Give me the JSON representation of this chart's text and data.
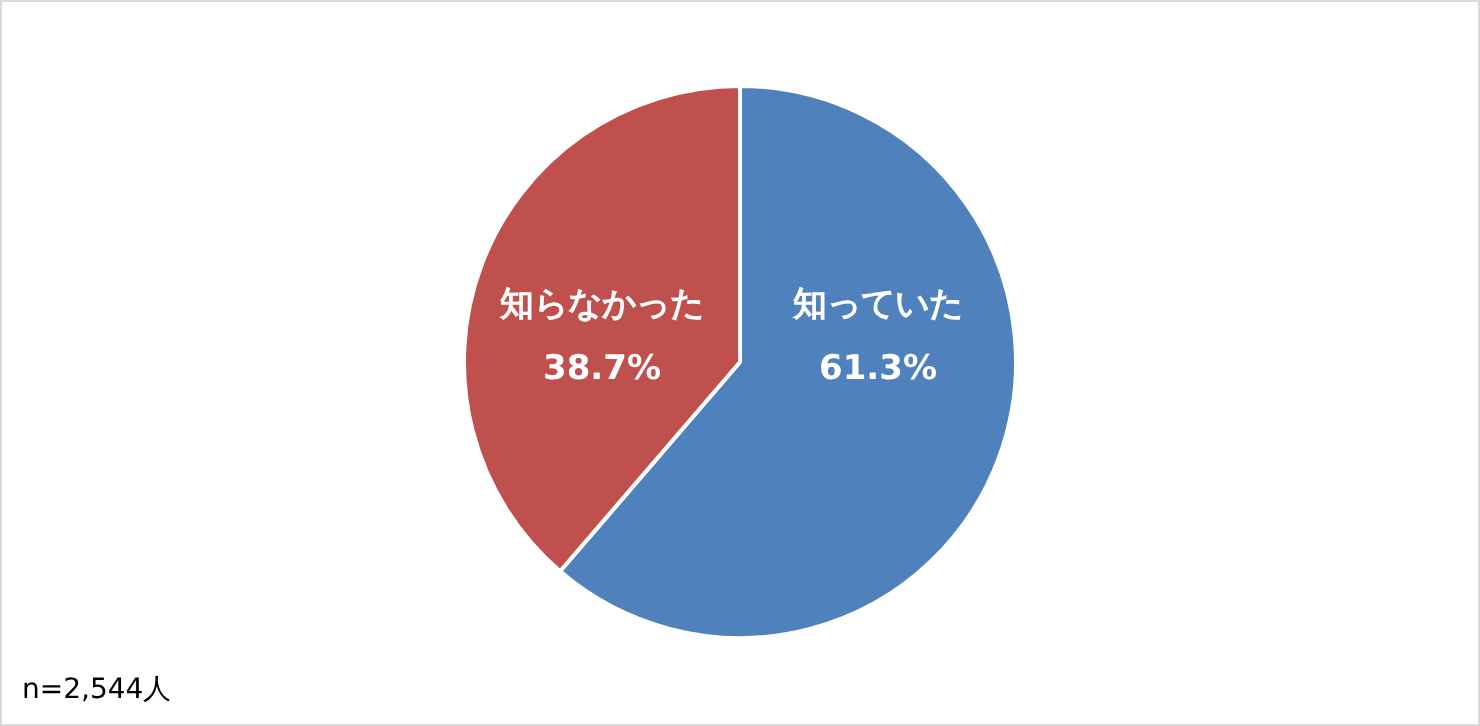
{
  "chart_data": {
    "type": "pie",
    "categories": [
      "知っていた",
      "知らなかった"
    ],
    "values": [
      61.3,
      38.7
    ],
    "colors": [
      "#4f81bd",
      "#c0504d"
    ],
    "value_labels": [
      "61.3%",
      "38.7%"
    ],
    "legend": false,
    "annotations": [
      "n=2,544人"
    ]
  }
}
